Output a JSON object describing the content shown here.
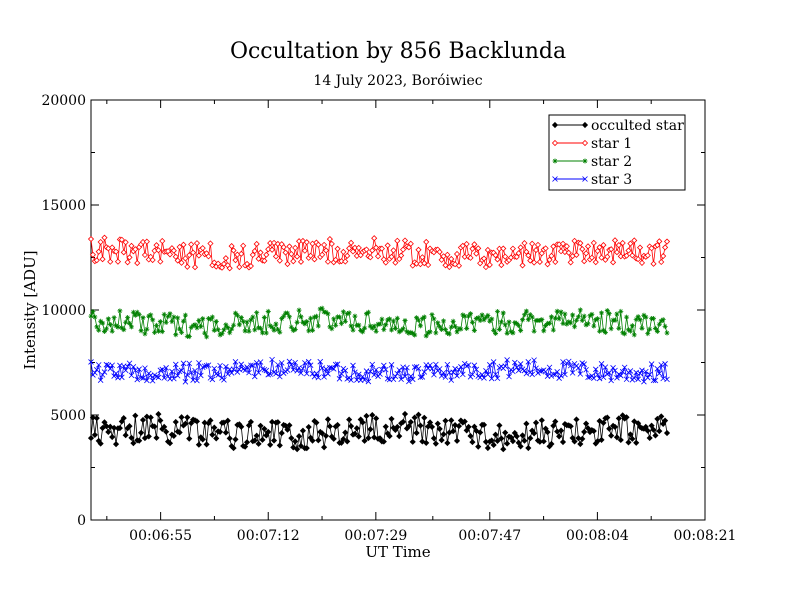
{
  "chart_data": {
    "type": "line",
    "title": "Occultation by 856 Backlunda",
    "subtitle": "14 July 2023, Boróiwiec",
    "xlabel": "UT Time",
    "ylabel": "Intensity [ADU]",
    "xlim": [
      "00:06:44",
      "00:08:21"
    ],
    "ylim": [
      0,
      20000
    ],
    "x_ticks": [
      "00:06:55",
      "00:07:12",
      "00:07:29",
      "00:07:47",
      "00:08:04",
      "00:08:21"
    ],
    "y_ticks": [
      0,
      5000,
      10000,
      15000,
      20000
    ],
    "legend_position": "top-right",
    "n_points": 300,
    "x_start": "00:06:44",
    "x_end": "00:08:15",
    "series": [
      {
        "name": "occulted star",
        "color": "#000000",
        "marker": "diamond-filled",
        "mean": 4200,
        "amplitude": 700
      },
      {
        "name": "star 1",
        "color": "#ff0000",
        "marker": "diamond-open",
        "mean": 12700,
        "amplitude": 600
      },
      {
        "name": "star 2",
        "color": "#008000",
        "marker": "star",
        "mean": 9400,
        "amplitude": 550
      },
      {
        "name": "star 3",
        "color": "#0000ff",
        "marker": "x",
        "mean": 7100,
        "amplitude": 450
      }
    ]
  }
}
